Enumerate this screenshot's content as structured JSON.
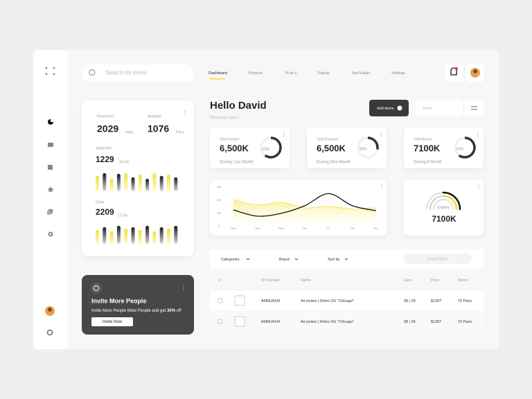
{
  "search_placeholder": "Search for items",
  "nav": [
    "Dashboard",
    "Projects",
    "To do's",
    "Rating",
    "Tasl Kaban",
    "Settings"
  ],
  "summary": {
    "purchased": {
      "label": "Purchased",
      "value": 2029,
      "unit": "Pairs"
    },
    "available": {
      "label": "Available",
      "value": 1076,
      "unit": "Pairs"
    },
    "subscriber": {
      "label": "Subscriber",
      "value": 1229,
      "change": "19.4%",
      "bars": [
        22,
        26,
        18,
        25,
        26,
        20,
        24,
        18,
        26,
        22,
        24,
        20
      ]
    },
    "order": {
      "label": "Order",
      "value": 2209,
      "change": "12.5%",
      "bars": [
        20,
        24,
        18,
        26,
        22,
        24,
        20,
        26,
        18,
        24,
        22,
        26
      ]
    }
  },
  "invite": {
    "title": "Invite More People",
    "text_before": "Invite More People More People and get ",
    "highlight": "30%",
    "text_after": " off",
    "button": "Invite Now"
  },
  "greeting": {
    "title": "Hello David",
    "subtitle": "Welcome back !"
  },
  "add_button": "Add items",
  "filters_placeholder": "Filters",
  "stats": [
    {
      "label": "Total Income",
      "value": "6,500K",
      "pct": {
        "value": 60,
        "label": "60%"
      },
      "period": "During Last Month"
    },
    {
      "label": "Total Expense",
      "value": "6,500K",
      "pct": {
        "value": 28,
        "label": "28%"
      },
      "period": "During One Month"
    },
    {
      "label": "Total Bonus",
      "value": "7100K",
      "pct": {
        "value": 60,
        "label": "60%"
      },
      "period": "During 6 Month"
    }
  ],
  "chart": {
    "type": "line",
    "categories": [
      "Mon",
      "Tue",
      "Wed",
      "Thu",
      "Fri",
      "Sat",
      "Sun"
    ],
    "ylim": [
      0,
      30
    ],
    "yticks": [
      {
        "value": 0,
        "label": "0"
      },
      {
        "value": 10,
        "label": "10k"
      },
      {
        "value": 20,
        "label": "20k"
      },
      {
        "value": 30,
        "label": "30k"
      }
    ],
    "series": [
      {
        "color": "#f3e03b",
        "values": [
          20.5,
          16.3,
          18.4,
          14.2,
          15.3,
          13.2,
          14.2
        ]
      },
      {
        "color": "#111111",
        "values": [
          12.6,
          7.9,
          10,
          15.8,
          25,
          15.8,
          12
        ]
      }
    ]
  },
  "orders": {
    "label": "Orders",
    "value": "7100K"
  },
  "table": {
    "filters": [
      "Categories",
      "Brand",
      "Sort by"
    ],
    "search_placeholder": "Search Items",
    "headers": [
      "#",
      "ID Number",
      "Name",
      "Size",
      "Price",
      "Name"
    ],
    "rows": [
      [
        "A98AJKH9",
        "Air jordan  |  Retro OG \"Chicago\"",
        "38  |  39",
        "$1287",
        "79 Pairs"
      ],
      [
        "A98AJKH9",
        "Air jordan  |  Retro OG \"Chicago\"",
        "38  |  39",
        "$1287",
        "79 Pairs"
      ]
    ]
  }
}
